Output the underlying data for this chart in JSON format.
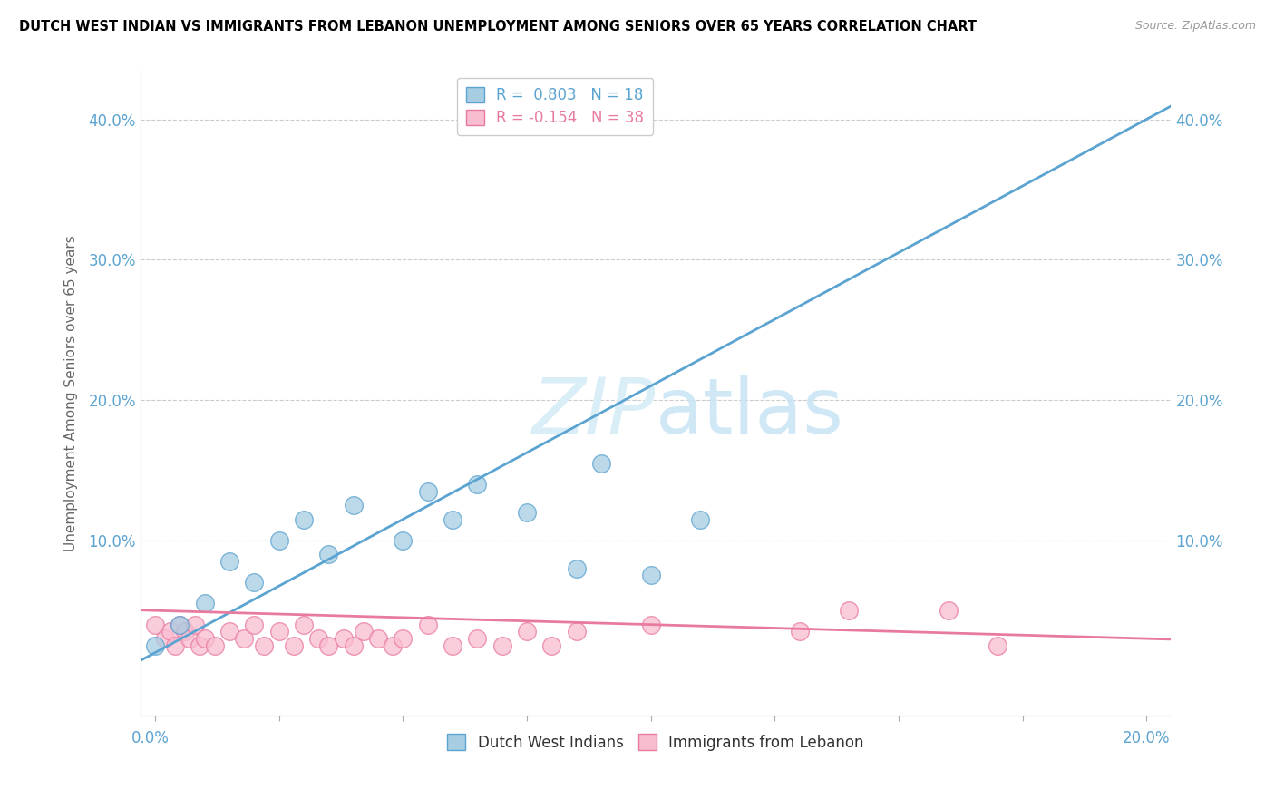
{
  "title": "DUTCH WEST INDIAN VS IMMIGRANTS FROM LEBANON UNEMPLOYMENT AMONG SENIORS OVER 65 YEARS CORRELATION CHART",
  "source": "Source: ZipAtlas.com",
  "ylabel": "Unemployment Among Seniors over 65 years",
  "ytick_values": [
    0.0,
    0.1,
    0.2,
    0.3,
    0.4
  ],
  "ytick_labels": [
    "",
    "10.0%",
    "20.0%",
    "30.0%",
    "40.0%"
  ],
  "xlim": [
    -0.003,
    0.205
  ],
  "ylim": [
    -0.025,
    0.435
  ],
  "legend_R1": "R =  0.803",
  "legend_N1": "N = 18",
  "legend_R2": "R = -0.154",
  "legend_N2": "N = 38",
  "color_blue": "#a6cde2",
  "color_pink": "#f9bdd0",
  "color_blue_line": "#5ba3d0",
  "color_pink_line": "#e87aa0",
  "color_blue_edge": "#5ba3d0",
  "color_pink_edge": "#e87aa0",
  "color_blue_text": "#5ba3d0",
  "color_pink_text": "#e87aa0",
  "color_axis": "#5ba3d0",
  "color_grid": "#cccccc",
  "watermark_color": "#daeef8",
  "dutch_west_indian_x": [
    0.0,
    0.005,
    0.01,
    0.015,
    0.02,
    0.025,
    0.03,
    0.035,
    0.04,
    0.05,
    0.055,
    0.06,
    0.065,
    0.075,
    0.085,
    0.09,
    0.1,
    0.11
  ],
  "dutch_west_indian_y": [
    0.025,
    0.04,
    0.055,
    0.085,
    0.07,
    0.1,
    0.115,
    0.09,
    0.125,
    0.1,
    0.135,
    0.115,
    0.14,
    0.12,
    0.08,
    0.155,
    0.075,
    0.115
  ],
  "lebanon_x": [
    0.0,
    0.002,
    0.003,
    0.004,
    0.005,
    0.006,
    0.007,
    0.008,
    0.009,
    0.01,
    0.012,
    0.015,
    0.018,
    0.02,
    0.022,
    0.025,
    0.028,
    0.03,
    0.033,
    0.035,
    0.038,
    0.04,
    0.042,
    0.045,
    0.048,
    0.05,
    0.055,
    0.06,
    0.065,
    0.07,
    0.075,
    0.08,
    0.085,
    0.1,
    0.13,
    0.14,
    0.16,
    0.17
  ],
  "lebanon_y": [
    0.04,
    0.03,
    0.035,
    0.025,
    0.04,
    0.035,
    0.03,
    0.04,
    0.025,
    0.03,
    0.025,
    0.035,
    0.03,
    0.04,
    0.025,
    0.035,
    0.025,
    0.04,
    0.03,
    0.025,
    0.03,
    0.025,
    0.035,
    0.03,
    0.025,
    0.03,
    0.04,
    0.025,
    0.03,
    0.025,
    0.035,
    0.025,
    0.035,
    0.04,
    0.035,
    0.05,
    0.05,
    0.025
  ]
}
